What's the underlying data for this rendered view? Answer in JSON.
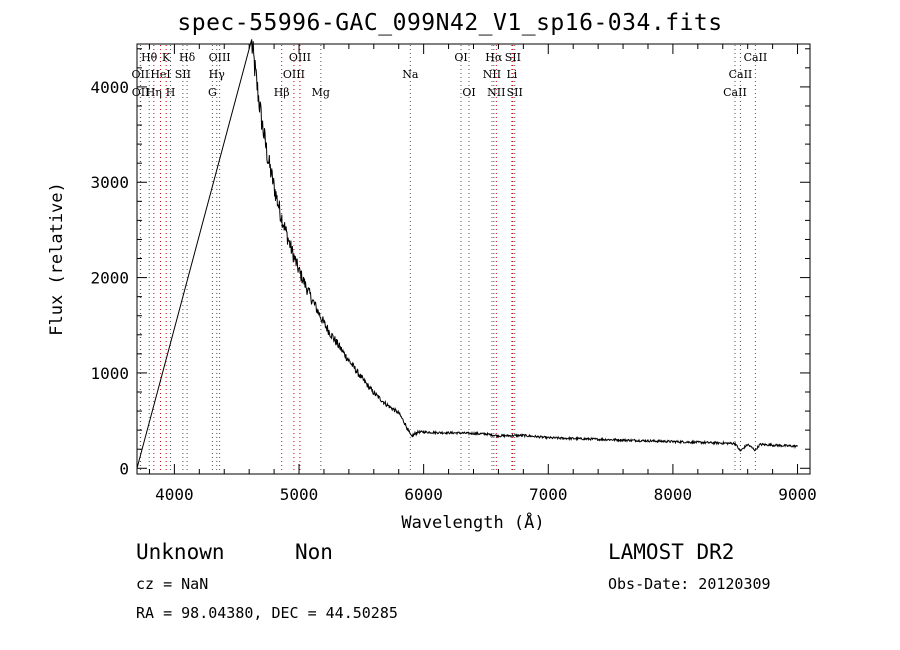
{
  "title": "spec-55996-GAC_099N42_V1_sp16-034.fits",
  "footer": {
    "class": "Unknown",
    "subclass": "Non",
    "cz": "cz = NaN",
    "radec": "RA =  98.04380, DEC =  44.50285",
    "survey": "LAMOST DR2",
    "obs_date": "Obs-Date: 20120309"
  },
  "chart_data": {
    "type": "line",
    "title": "spec-55996-GAC_099N42_V1_sp16-034.fits",
    "xlabel": "Wavelength (Å)",
    "ylabel": "Flux (relative)",
    "xlim": [
      3700,
      9100
    ],
    "ylim": [
      -60,
      4450
    ],
    "xticks": [
      4000,
      5000,
      6000,
      7000,
      8000,
      9000
    ],
    "yticks": [
      0,
      1000,
      2000,
      3000,
      4000
    ],
    "grid": false,
    "series": [
      {
        "color": "#000000",
        "points": [
          [
            3700,
            0
          ],
          [
            4620,
            4450
          ],
          [
            4660,
            4050
          ],
          [
            4700,
            3650
          ],
          [
            4750,
            3250
          ],
          [
            4800,
            2950
          ],
          [
            4850,
            2680
          ],
          [
            4900,
            2460
          ],
          [
            4950,
            2250
          ],
          [
            5000,
            2070
          ],
          [
            5100,
            1780
          ],
          [
            5200,
            1520
          ],
          [
            5300,
            1320
          ],
          [
            5400,
            1130
          ],
          [
            5500,
            950
          ],
          [
            5600,
            790
          ],
          [
            5700,
            670
          ],
          [
            5800,
            580
          ],
          [
            5850,
            470
          ],
          [
            5900,
            330
          ],
          [
            5950,
            380
          ],
          [
            6000,
            380
          ],
          [
            6100,
            375
          ],
          [
            6300,
            370
          ],
          [
            6500,
            360
          ],
          [
            6600,
            340
          ],
          [
            6800,
            345
          ],
          [
            7000,
            320
          ],
          [
            7500,
            300
          ],
          [
            8000,
            280
          ],
          [
            8500,
            260
          ],
          [
            8540,
            180
          ],
          [
            8600,
            250
          ],
          [
            8660,
            190
          ],
          [
            8700,
            250
          ],
          [
            9000,
            230
          ]
        ]
      }
    ],
    "lines": [
      {
        "label": "Hθ",
        "x": 3798,
        "row": 0
      },
      {
        "label": "K",
        "x": 3934,
        "row": 0
      },
      {
        "label": "Hδ",
        "x": 4102,
        "row": 0
      },
      {
        "label": "OIII",
        "x": 4363,
        "row": 0
      },
      {
        "label": "OIII",
        "x": 5007,
        "row": 0
      },
      {
        "label": "OI",
        "x": 6300,
        "row": 0
      },
      {
        "label": "Hα",
        "x": 6563,
        "row": 0
      },
      {
        "label": "SII",
        "x": 6716,
        "row": 0
      },
      {
        "label": "CaII",
        "x": 8662,
        "row": 0
      },
      {
        "label": "OII",
        "x": 3727,
        "row": 1
      },
      {
        "label": "HeI",
        "x": 3889,
        "row": 1
      },
      {
        "label": "SII",
        "x": 4068,
        "row": 1
      },
      {
        "label": "Hγ",
        "x": 4340,
        "row": 1
      },
      {
        "label": "OIII",
        "x": 4959,
        "row": 1
      },
      {
        "label": "Na",
        "x": 5893,
        "row": 1
      },
      {
        "label": "NII",
        "x": 6548,
        "row": 1
      },
      {
        "label": "Li",
        "x": 6708,
        "row": 1
      },
      {
        "label": "CaII",
        "x": 8542,
        "row": 1
      },
      {
        "label": "OII",
        "x": 3729,
        "row": 2
      },
      {
        "label": "Hη",
        "x": 3835,
        "row": 2
      },
      {
        "label": "H",
        "x": 3969,
        "row": 2
      },
      {
        "label": "G",
        "x": 4305,
        "row": 2
      },
      {
        "label": "Hβ",
        "x": 4861,
        "row": 2
      },
      {
        "label": "Mg",
        "x": 5175,
        "row": 2
      },
      {
        "label": "OI",
        "x": 6364,
        "row": 2
      },
      {
        "label": "NII",
        "x": 6583,
        "row": 2
      },
      {
        "label": "SII",
        "x": 6731,
        "row": 2
      },
      {
        "label": "CaII",
        "x": 8498,
        "row": 2
      }
    ],
    "line_colors": {
      "emission": "#cc0000",
      "absorption": "#555555"
    }
  }
}
